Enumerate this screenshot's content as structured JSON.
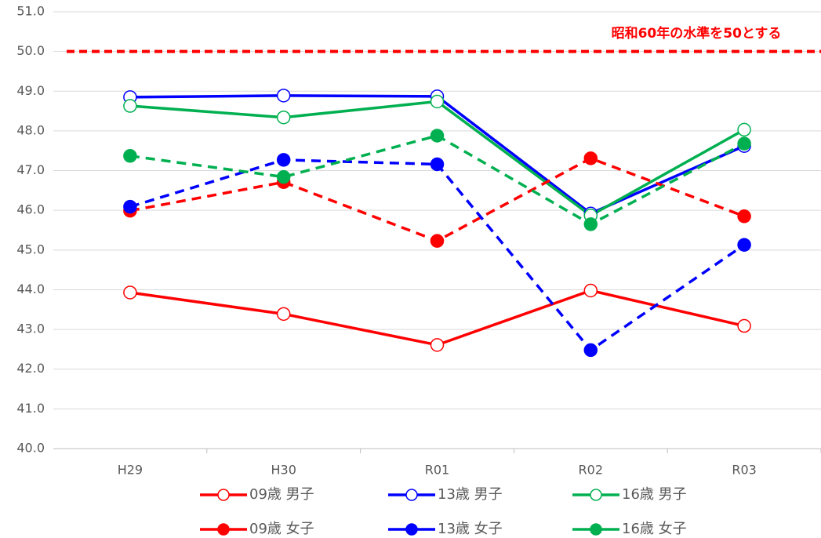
{
  "chart_data": {
    "type": "line",
    "categories": [
      "H29",
      "H30",
      "R01",
      "R02",
      "R03"
    ],
    "series": [
      {
        "name": "09歳 男子",
        "color": "#ff0000",
        "dashed": false,
        "marker": "open",
        "values": [
          43.93,
          43.39,
          42.61,
          43.98,
          43.09
        ]
      },
      {
        "name": "13歳 男子",
        "color": "#0000ff",
        "dashed": false,
        "marker": "open",
        "values": [
          48.85,
          48.89,
          48.87,
          45.92,
          47.62
        ]
      },
      {
        "name": "16歳 男子",
        "color": "#00b050",
        "dashed": false,
        "marker": "open",
        "values": [
          48.63,
          48.34,
          48.74,
          45.87,
          48.03
        ]
      },
      {
        "name": "09歳 女子",
        "color": "#ff0000",
        "dashed": true,
        "marker": "filled",
        "values": [
          45.99,
          46.71,
          45.23,
          47.31,
          45.85
        ]
      },
      {
        "name": "13歳 女子",
        "color": "#0000ff",
        "dashed": true,
        "marker": "filled",
        "values": [
          46.09,
          47.27,
          47.16,
          42.48,
          45.13
        ]
      },
      {
        "name": "16歳 女子",
        "color": "#00b050",
        "dashed": true,
        "marker": "filled",
        "values": [
          47.37,
          46.84,
          47.88,
          45.65,
          47.68
        ]
      }
    ],
    "reference_line": {
      "value": 50,
      "label": "昭和60年の水準を50とする",
      "color": "#ff0000"
    },
    "ylim": [
      40,
      51
    ],
    "yticks": [
      {
        "value": 40,
        "label": "40.0"
      },
      {
        "value": 41,
        "label": "41.0"
      },
      {
        "value": 42,
        "label": "42.0"
      },
      {
        "value": 43,
        "label": "43.0"
      },
      {
        "value": 44,
        "label": "44.0"
      },
      {
        "value": 45,
        "label": "45.0"
      },
      {
        "value": 46,
        "label": "46.0"
      },
      {
        "value": 47,
        "label": "47.0"
      },
      {
        "value": 48,
        "label": "48.0"
      },
      {
        "value": 49,
        "label": "49.0"
      },
      {
        "value": 50,
        "label": "50.0"
      },
      {
        "value": 51,
        "label": "51.0"
      }
    ],
    "grid": true,
    "legend": "bottom"
  }
}
